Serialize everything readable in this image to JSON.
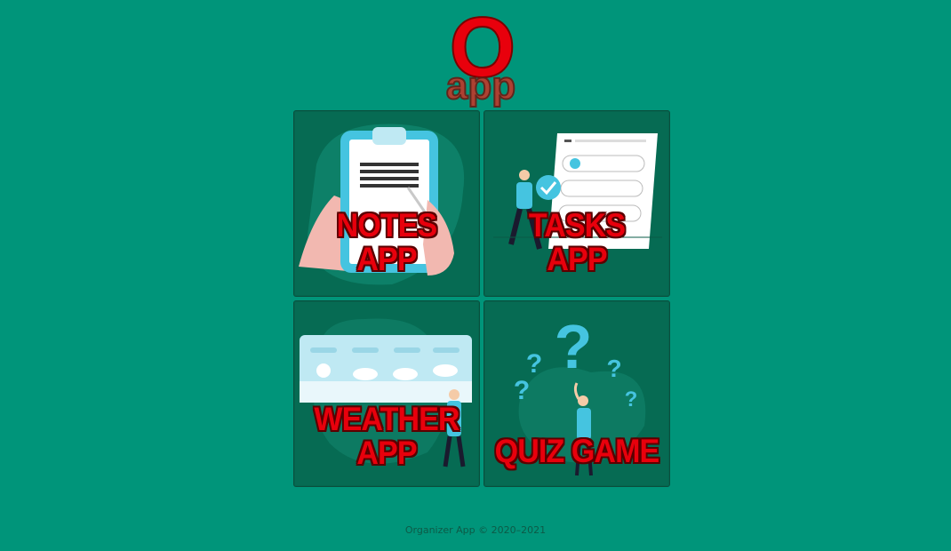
{
  "logo": {
    "letter": "O",
    "text": "app",
    "letter_color": "#e8000c",
    "text_color": "#c0392b"
  },
  "tiles": [
    {
      "id": "notes",
      "label_line1": "NOTES",
      "label_line2": "APP",
      "icon": "clipboard-notes-icon"
    },
    {
      "id": "tasks",
      "label_line1": "TASKS",
      "label_line2": "APP",
      "icon": "task-checklist-icon"
    },
    {
      "id": "weather",
      "label_line1": "WEATHER",
      "label_line2": "APP",
      "icon": "weather-forecast-icon"
    },
    {
      "id": "quiz",
      "label_line1": "QUIZ GAME",
      "label_line2": "",
      "icon": "question-marks-icon"
    }
  ],
  "footer": {
    "text": "Organizer App © 2020–2021"
  },
  "colors": {
    "background": "#00957a",
    "tile": "#066b53",
    "label": "#e8000c",
    "accent_blue": "#45c4e0"
  }
}
